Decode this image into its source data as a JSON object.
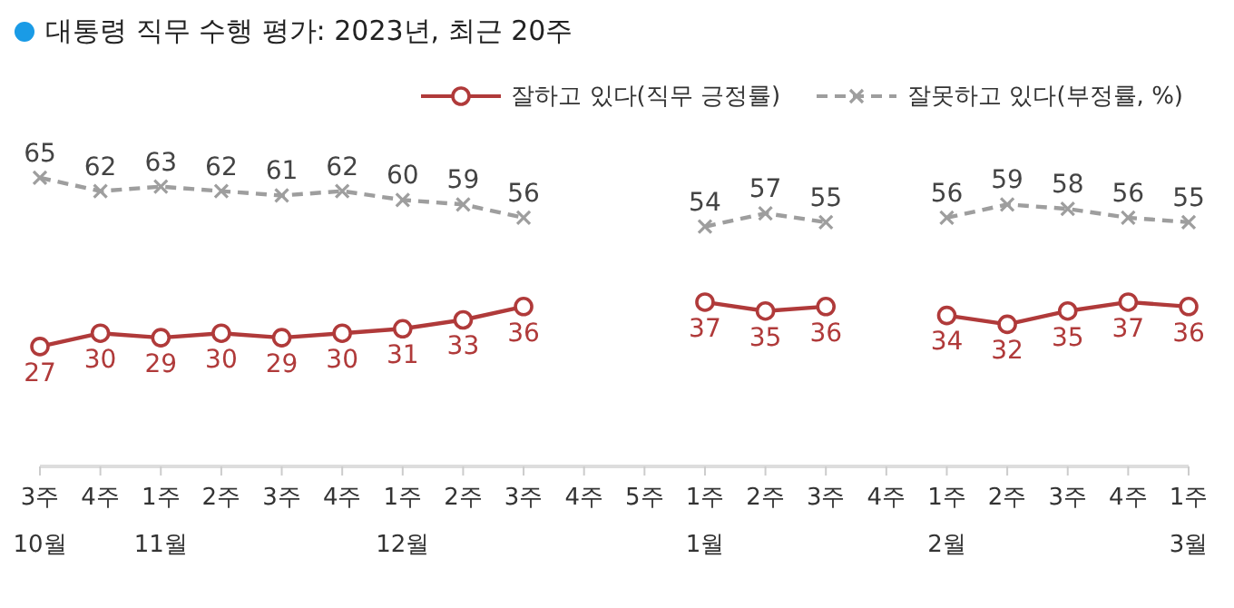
{
  "chart_data": {
    "type": "line",
    "title": "대통령 직무 수행 평가: 2023년, 최근 20주",
    "categories": [
      "3주\n10월",
      "4주",
      "1주\n11월",
      "2주",
      "3주",
      "4주",
      "1주\n12월",
      "2주",
      "3주",
      "4주",
      "5주",
      "1주\n1월",
      "2주",
      "3주",
      "4주",
      "1주\n2월",
      "2주",
      "3주",
      "4주",
      "1주\n3월"
    ],
    "series": [
      {
        "name": "잘하고 있다(직무 긍정률)",
        "color": "#b03a3a",
        "marker": "circle",
        "line_style": "solid",
        "values": [
          27,
          30,
          29,
          30,
          29,
          30,
          31,
          33,
          36,
          null,
          null,
          37,
          35,
          36,
          null,
          34,
          32,
          35,
          37,
          36
        ]
      },
      {
        "name": "잘못하고 있다(부정률, %)",
        "color": "#9e9e9e",
        "marker": "cross",
        "line_style": "dashed",
        "values": [
          65,
          62,
          63,
          62,
          61,
          62,
          60,
          59,
          56,
          null,
          null,
          54,
          57,
          55,
          null,
          56,
          59,
          58,
          56,
          55
        ]
      }
    ],
    "data_labels": true,
    "legend": "top right"
  }
}
